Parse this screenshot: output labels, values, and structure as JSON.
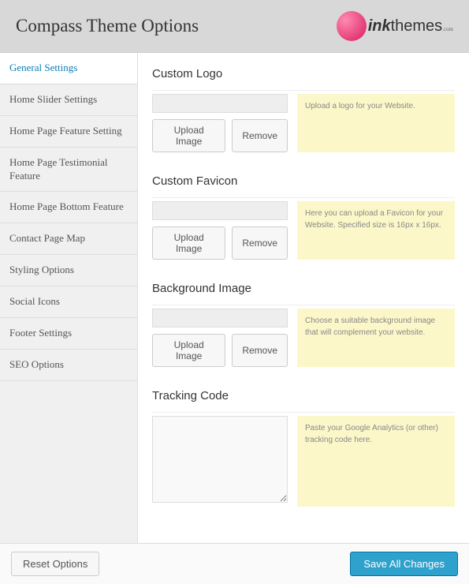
{
  "header": {
    "title": "Compass Theme Options",
    "logo_ink": "ink",
    "logo_themes": "themes",
    "logo_sub": ".com"
  },
  "sidebar": {
    "items": [
      {
        "label": "General Settings",
        "active": true
      },
      {
        "label": "Home Slider Settings",
        "active": false
      },
      {
        "label": "Home Page Feature Setting",
        "active": false
      },
      {
        "label": "Home Page Testimonial Feature",
        "active": false
      },
      {
        "label": "Home Page Bottom Feature",
        "active": false
      },
      {
        "label": "Contact Page Map",
        "active": false
      },
      {
        "label": "Styling Options",
        "active": false
      },
      {
        "label": "Social Icons",
        "active": false
      },
      {
        "label": "Footer Settings",
        "active": false
      },
      {
        "label": "SEO Options",
        "active": false
      }
    ]
  },
  "sections": {
    "logo": {
      "title": "Custom Logo",
      "upload_btn": "Upload Image",
      "remove_btn": "Remove",
      "help": "Upload a logo for your Website."
    },
    "favicon": {
      "title": "Custom Favicon",
      "upload_btn": "Upload Image",
      "remove_btn": "Remove",
      "help": "Here you can upload a Favicon for your Website. Specified size is 16px x 16px."
    },
    "background": {
      "title": "Background Image",
      "upload_btn": "Upload Image",
      "remove_btn": "Remove",
      "help": "Choose a suitable background image that will complement your website."
    },
    "tracking": {
      "title": "Tracking Code",
      "help": "Paste your Google Analytics (or other) tracking code here."
    }
  },
  "footer": {
    "reset_btn": "Reset Options",
    "save_btn": "Save All Changes"
  }
}
